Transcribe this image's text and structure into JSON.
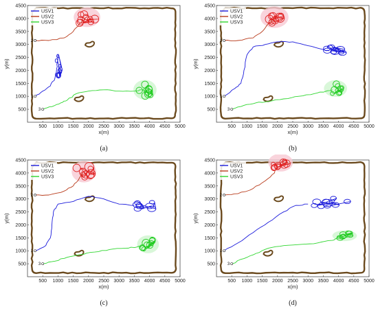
{
  "colors": {
    "usv1": "#1a1adb",
    "usv2": "#b83a1a",
    "usv2_loop": "#e02222",
    "usv3": "#2ed62e",
    "usv3_loop": "#22cc22",
    "boundary": "#6b4a1e",
    "halo_red": "#f7c9d3",
    "halo_green": "#cff5cf"
  },
  "chart_data": [
    {
      "type": "line",
      "caption": "(a)",
      "xlabel": "x(m)",
      "ylabel": "y(m)",
      "xlim": [
        0,
        5000
      ],
      "ylim": [
        0,
        4500
      ],
      "xticks": [
        500,
        1000,
        1500,
        2000,
        2500,
        3000,
        3500,
        4000,
        4500,
        5000
      ],
      "yticks": [
        500,
        1000,
        1500,
        2000,
        2500,
        3000,
        3500,
        4000,
        4500
      ],
      "legend": {
        "position": "top-left",
        "entries": [
          "USV1",
          "USV2",
          "USV3"
        ]
      },
      "start_labels": [
        "1",
        "2",
        "3"
      ],
      "start_points": [
        [
          250,
          1000
        ],
        [
          250,
          3150
        ],
        [
          500,
          500
        ]
      ],
      "series": [
        {
          "name": "USV1",
          "path": [
            [
              250,
              1000
            ],
            [
              500,
              1200
            ],
            [
              750,
              1400
            ],
            [
              900,
              1700
            ],
            [
              950,
              2000
            ],
            [
              980,
              2300
            ],
            [
              1000,
              2600
            ]
          ],
          "cluster": {
            "cx": 1000,
            "cy": 2200,
            "rx": 130,
            "ry": 700
          }
        },
        {
          "name": "USV2",
          "path": [
            [
              250,
              3150
            ],
            [
              700,
              3150
            ],
            [
              1200,
              3250
            ],
            [
              1500,
              3500
            ],
            [
              1700,
              3800
            ],
            [
              1900,
              4000
            ]
          ],
          "cluster": {
            "cx": 1950,
            "cy": 4050,
            "rx": 380,
            "ry": 330
          }
        },
        {
          "name": "USV3",
          "path": [
            [
              500,
              500
            ],
            [
              800,
              600
            ],
            [
              1100,
              750
            ],
            [
              1300,
              850
            ],
            [
              1600,
              1100
            ],
            [
              2000,
              1200
            ],
            [
              2500,
              1250
            ],
            [
              3000,
              1200
            ],
            [
              3500,
              1200
            ],
            [
              3750,
              1250
            ]
          ],
          "cluster": {
            "cx": 3850,
            "cy": 1250,
            "rx": 330,
            "ry": 330
          }
        }
      ]
    },
    {
      "type": "line",
      "caption": "(b)",
      "xlabel": "x(m)",
      "ylabel": "y(m)",
      "xlim": [
        0,
        5000
      ],
      "ylim": [
        0,
        4500
      ],
      "xticks": [
        500,
        1000,
        1500,
        2000,
        2500,
        3000,
        3500,
        4000,
        4500,
        5000
      ],
      "yticks": [
        500,
        1000,
        1500,
        2000,
        2500,
        3000,
        3500,
        4000,
        4500
      ],
      "legend": {
        "position": "top-left",
        "entries": [
          "USV1",
          "USV2",
          "USV3"
        ]
      },
      "start_labels": [
        "1",
        "2",
        "3"
      ],
      "start_points": [
        [
          250,
          1000
        ],
        [
          250,
          3150
        ],
        [
          500,
          500
        ]
      ],
      "series": [
        {
          "name": "USV1",
          "path": [
            [
              250,
              1000
            ],
            [
              600,
              1300
            ],
            [
              800,
              1500
            ],
            [
              900,
              2000
            ],
            [
              1000,
              2600
            ],
            [
              1200,
              2900
            ],
            [
              1600,
              3000
            ],
            [
              2000,
              3100
            ],
            [
              2500,
              3100
            ],
            [
              3000,
              2950
            ],
            [
              3500,
              2800
            ],
            [
              3700,
              2750
            ]
          ],
          "cluster": {
            "cx": 3850,
            "cy": 2800,
            "rx": 450,
            "ry": 230
          }
        },
        {
          "name": "USV2",
          "path": [
            [
              250,
              3150
            ],
            [
              700,
              3150
            ],
            [
              1200,
              3250
            ],
            [
              1500,
              3500
            ],
            [
              1700,
              3800
            ],
            [
              1900,
              4000
            ]
          ],
          "cluster": {
            "cx": 1900,
            "cy": 4050,
            "rx": 400,
            "ry": 360
          }
        },
        {
          "name": "USV3",
          "path": [
            [
              500,
              500
            ],
            [
              900,
              650
            ],
            [
              1300,
              750
            ],
            [
              1700,
              800
            ],
            [
              2200,
              900
            ],
            [
              2700,
              1000
            ],
            [
              3200,
              1100
            ],
            [
              3600,
              1200
            ],
            [
              3800,
              1250
            ]
          ],
          "cluster": {
            "cx": 3900,
            "cy": 1300,
            "rx": 330,
            "ry": 280
          }
        }
      ]
    },
    {
      "type": "line",
      "caption": "(c)",
      "xlabel": "x(m)",
      "ylabel": "y(m)",
      "xlim": [
        0,
        5000
      ],
      "ylim": [
        0,
        4500
      ],
      "xticks": [
        500,
        1000,
        1500,
        2000,
        2500,
        3000,
        3500,
        4000,
        4500,
        5000
      ],
      "yticks": [
        500,
        1000,
        1500,
        2000,
        2500,
        3000,
        3500,
        4000,
        4500
      ],
      "legend": {
        "position": "top-left",
        "entries": [
          "USV1",
          "USV2",
          "USV3"
        ]
      },
      "start_labels": [
        "1",
        "2",
        "3"
      ],
      "start_points": [
        [
          250,
          1000
        ],
        [
          250,
          3150
        ],
        [
          500,
          500
        ]
      ],
      "series": [
        {
          "name": "USV1",
          "path": [
            [
              250,
              1000
            ],
            [
              600,
              1200
            ],
            [
              750,
              1500
            ],
            [
              800,
              2000
            ],
            [
              850,
              2500
            ],
            [
              1000,
              2800
            ],
            [
              1500,
              2900
            ],
            [
              2000,
              3100
            ],
            [
              2500,
              3000
            ],
            [
              3000,
              2800
            ],
            [
              3500,
              2750
            ]
          ],
          "cluster": {
            "cx": 3850,
            "cy": 2750,
            "rx": 380,
            "ry": 220
          }
        },
        {
          "name": "USV2",
          "path": [
            [
              250,
              3150
            ],
            [
              700,
              3150
            ],
            [
              1200,
              3300
            ],
            [
              1500,
              3500
            ],
            [
              1700,
              3800
            ],
            [
              1800,
              4000
            ]
          ],
          "cluster": {
            "cx": 1850,
            "cy": 4050,
            "rx": 350,
            "ry": 360
          }
        },
        {
          "name": "USV3",
          "path": [
            [
              500,
              500
            ],
            [
              900,
              600
            ],
            [
              1300,
              750
            ],
            [
              1700,
              850
            ],
            [
              2200,
              950
            ],
            [
              2700,
              1050
            ],
            [
              3200,
              1100
            ],
            [
              3600,
              1150
            ],
            [
              3800,
              1200
            ]
          ],
          "cluster": {
            "cx": 3950,
            "cy": 1250,
            "rx": 310,
            "ry": 300
          }
        }
      ]
    },
    {
      "type": "line",
      "caption": "(d)",
      "xlabel": "x(m)",
      "ylabel": "y(m)",
      "xlim": [
        0,
        5000
      ],
      "ylim": [
        0,
        4500
      ],
      "xticks": [
        500,
        1000,
        1500,
        2000,
        2500,
        3000,
        3500,
        4000,
        4500,
        5000
      ],
      "yticks": [
        500,
        1000,
        1500,
        2000,
        2500,
        3000,
        3500,
        4000,
        4500
      ],
      "legend": {
        "position": "top-left",
        "entries": [
          "USV1",
          "USV2",
          "USV3"
        ]
      },
      "start_labels": [
        "1",
        "2",
        "3"
      ],
      "start_points": [
        [
          250,
          1000
        ],
        [
          250,
          3150
        ],
        [
          500,
          500
        ]
      ],
      "series": [
        {
          "name": "USV1",
          "path": [
            [
              250,
              1000
            ],
            [
              700,
              1300
            ],
            [
              1200,
              1700
            ],
            [
              1700,
              2100
            ],
            [
              2200,
              2500
            ],
            [
              2600,
              2750
            ],
            [
              3000,
              2800
            ]
          ],
          "cluster": {
            "cx": 3700,
            "cy": 2850,
            "rx": 850,
            "ry": 280
          }
        },
        {
          "name": "USV2",
          "path": [
            [
              250,
              3150
            ],
            [
              700,
              3200
            ],
            [
              1200,
              3400
            ],
            [
              1600,
              3700
            ],
            [
              1900,
              4000
            ],
            [
              2000,
              4300
            ]
          ],
          "cluster": {
            "cx": 2100,
            "cy": 4400,
            "rx": 350,
            "ry": 300
          }
        },
        {
          "name": "USV3",
          "path": [
            [
              500,
              500
            ],
            [
              900,
              700
            ],
            [
              1300,
              900
            ],
            [
              1700,
              1100
            ],
            [
              2200,
              1200
            ],
            [
              2800,
              1250
            ],
            [
              3300,
              1300
            ],
            [
              3800,
              1400
            ],
            [
              4000,
              1500
            ]
          ],
          "cluster": {
            "cx": 4200,
            "cy": 1580,
            "rx": 350,
            "ry": 180
          }
        }
      ]
    }
  ],
  "obstacles": [
    {
      "name": "obstacle-upper",
      "cx": 2050,
      "cy": 3000
    },
    {
      "name": "obstacle-lower",
      "cx": 1700,
      "cy": 900
    }
  ]
}
